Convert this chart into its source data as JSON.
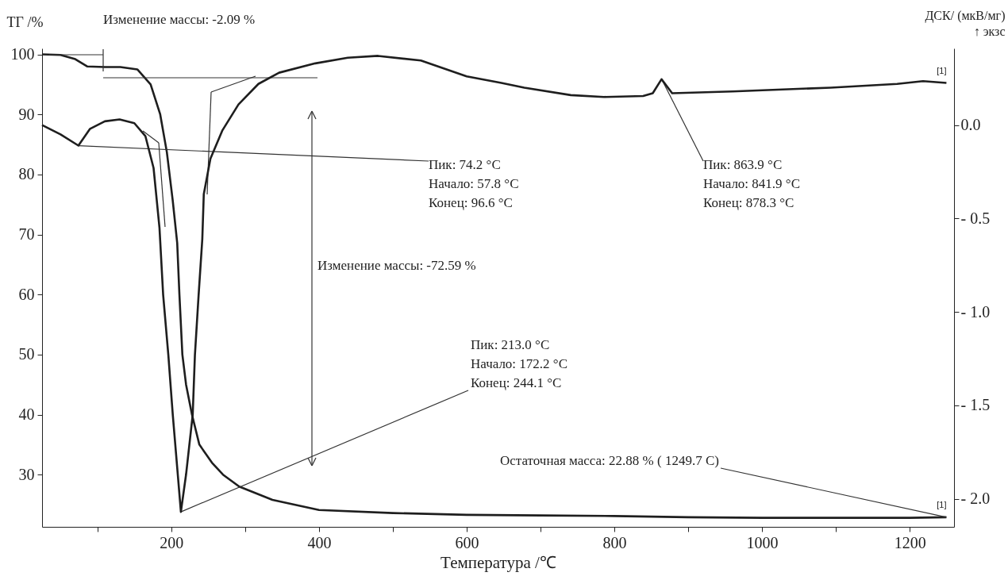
{
  "chart_data": {
    "type": "line",
    "xlabel": "Температура /℃",
    "ylabel": "ТГ /%",
    "y2label": "ДСК/ (мкВ/мг)\n↑ экзс",
    "xlim": [
      25,
      1260
    ],
    "ylim": [
      21.3,
      101
    ],
    "y2lim": [
      -2.15,
      0.41
    ],
    "xticks": [
      {
        "value": 100,
        "label": null
      },
      200,
      {
        "value": 300,
        "label": null
      },
      400,
      {
        "value": 500,
        "label": null
      },
      600,
      {
        "value": 700,
        "label": null
      },
      800,
      {
        "value": 900,
        "label": null
      },
      1000,
      {
        "value": 1100,
        "label": null
      },
      1200
    ],
    "yticks": [
      30,
      40,
      50,
      60,
      70,
      80,
      90,
      100
    ],
    "y2ticks": [
      {
        "value": 0,
        "label": "0.0"
      },
      {
        "value": -0.5,
        "label": "- 0.5"
      },
      {
        "value": -1.0,
        "label": "- 1.0"
      },
      {
        "value": -1.5,
        "label": "- 1.5"
      },
      {
        "value": -2.0,
        "label": "- 2.0"
      }
    ],
    "grid": false,
    "legend": false,
    "marker": "none",
    "line_style": "solid",
    "series": [
      {
        "name": "[1]",
        "color": "#1e1e1e",
        "x": [
          25,
          50,
          70,
          86,
          110,
          131,
          154,
          172,
          185,
          194,
          202,
          208,
          211,
          215,
          220,
          228,
          238,
          255,
          270,
          292,
          337,
          400,
          500,
          600,
          700,
          800,
          900,
          1000,
          1100,
          1200,
          1249.7
        ],
        "values": [
          100,
          99.9,
          99.2,
          98.0,
          97.9,
          97.9,
          97.5,
          95,
          90,
          83.7,
          75.6,
          68.6,
          60,
          50,
          45,
          40,
          35,
          32,
          30,
          28,
          25.8,
          24.1,
          23.6,
          23.3,
          23.2,
          23.1,
          22.9,
          22.8,
          22.8,
          22.8,
          22.9
        ]
      },
      {
        "name": "[1]",
        "color": "#1e1e1e",
        "axis": "y2",
        "x": [
          25,
          50,
          74.2,
          90,
          110,
          130,
          150,
          165,
          176,
          184,
          189,
          196,
          202,
          209,
          213,
          220,
          229,
          232,
          237,
          242,
          244,
          253,
          269,
          291,
          318,
          346,
          395,
          439,
          480,
          538,
          600,
          647,
          678,
          741,
          786,
          839,
          852,
          863.9,
          878.3,
          960,
          1093,
          1183,
          1218,
          1249.7
        ],
        "values": [
          0.0,
          -0.05,
          -0.11,
          -0.02,
          0.02,
          0.03,
          0.01,
          -0.06,
          -0.23,
          -0.55,
          -0.91,
          -1.23,
          -1.55,
          -1.88,
          -2.07,
          -1.87,
          -1.55,
          -1.23,
          -0.91,
          -0.61,
          -0.37,
          -0.18,
          -0.03,
          0.11,
          0.22,
          0.28,
          0.33,
          0.36,
          0.37,
          0.345,
          0.26,
          0.225,
          0.2,
          0.16,
          0.15,
          0.155,
          0.17,
          0.245,
          0.17,
          0.18,
          0.2,
          0.22,
          0.235,
          0.225
        ]
      }
    ],
    "annotations": [
      "Изменение массы: -2.09 %",
      {
        "text": "Пик:       74.2  °C\nНачало:  57.8  °C\nКонец:    96.6  °C",
        "x": 74.2,
        "y": 84.8
      },
      "Изменение массы: -72.59 %",
      {
        "text": "Пик:        863.9  °C\nНачало:  841.9  °C\nКонец:    878.3  °C",
        "x": 863.9,
        "y": 95.9
      },
      {
        "text": "Пик:        213.0  °C\nНачало:  172.2  °C\nКонец:    244.1  °C",
        "x": 213.0,
        "y": 23.8
      },
      {
        "text": "Остаточная масса: 22.88 % ( 1249.7  C)",
        "x": 1249.7,
        "y": 22.9
      }
    ]
  }
}
